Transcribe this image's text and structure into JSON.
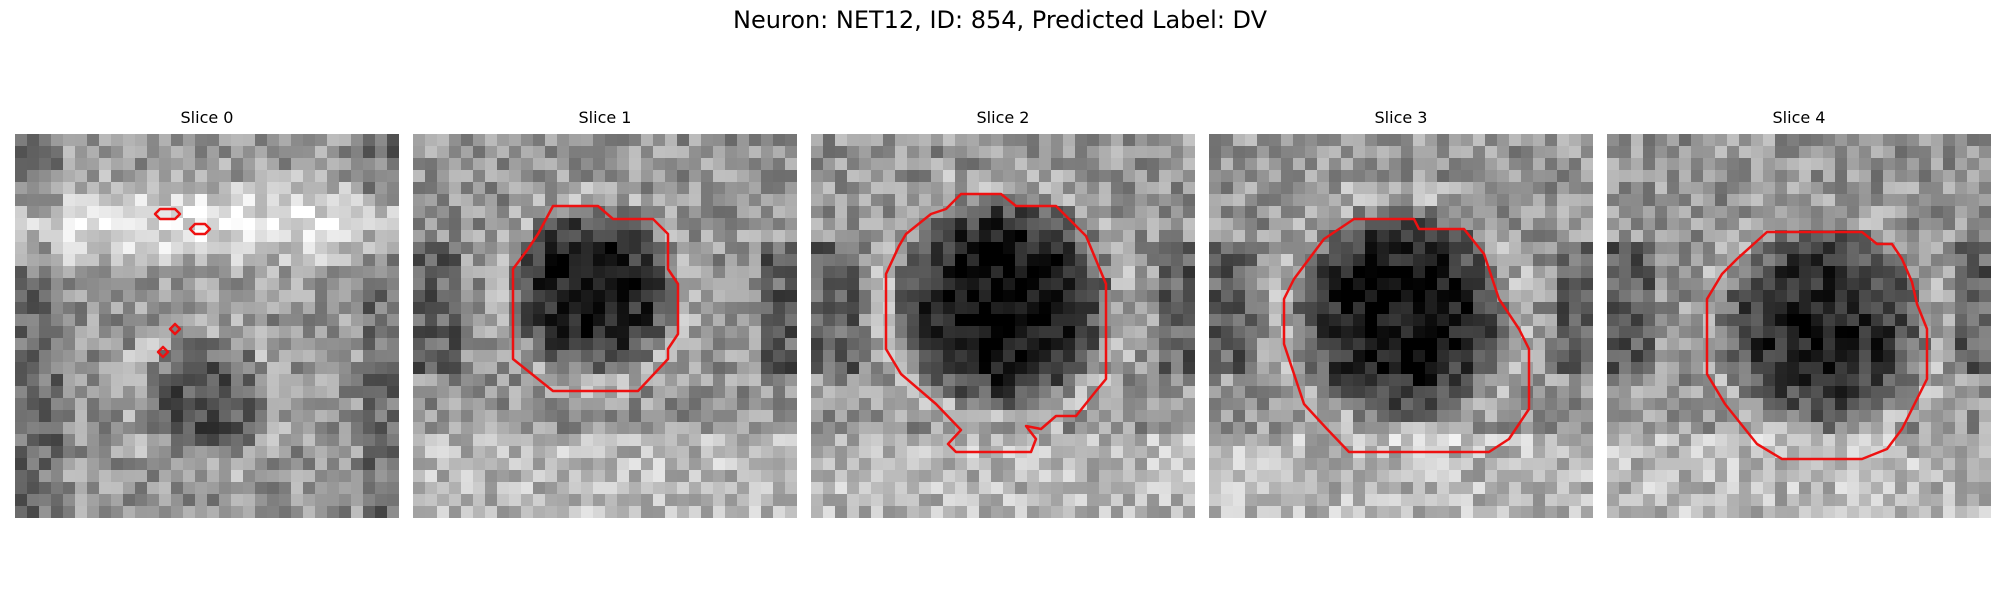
{
  "figure": {
    "title": "Neuron: NET12, ID: 854, Predicted Label: DV"
  },
  "colors": {
    "contour": "#ee1111"
  },
  "panels": [
    {
      "title": "Slice 0"
    },
    {
      "title": "Slice 1"
    },
    {
      "title": "Slice 2"
    },
    {
      "title": "Slice 3"
    },
    {
      "title": "Slice 4"
    }
  ]
}
